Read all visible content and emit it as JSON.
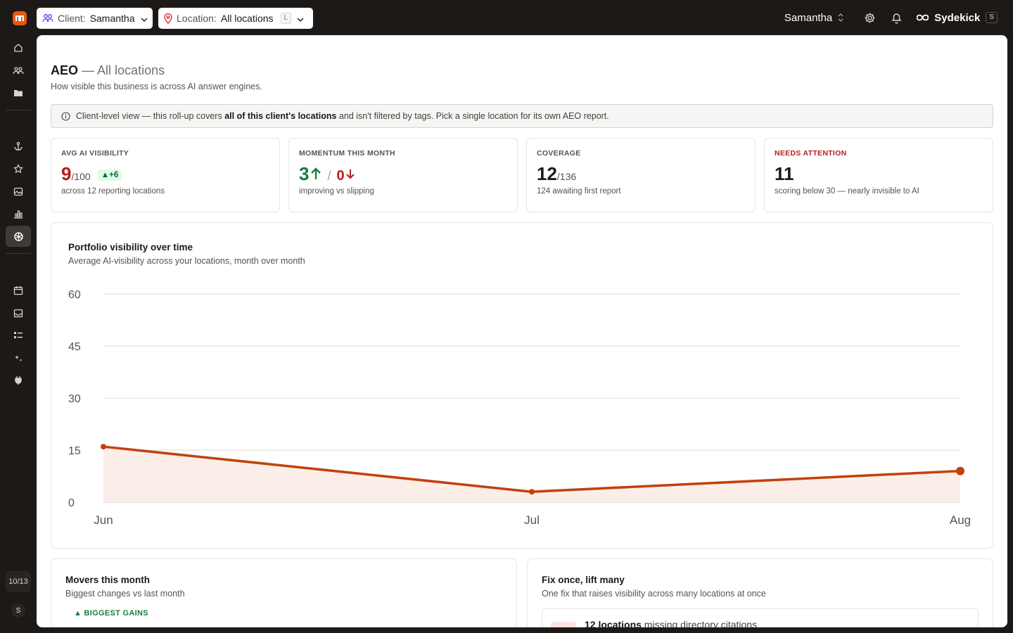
{
  "topbar": {
    "client_label": "Client:",
    "client_value": "Samantha",
    "location_label": "Location:",
    "location_value": "All locations",
    "location_shortcut": "L",
    "user_name": "Samantha",
    "brand_name": "Sydekick",
    "brand_shortcut": "S"
  },
  "sidebar": {
    "items": [
      "home-icon",
      "users-icon",
      "folder-icon",
      "anchor-icon",
      "star-icon",
      "images-icon",
      "bar-chart-icon",
      "aeo-icon",
      "calendar-icon",
      "inbox-icon",
      "tasks-icon",
      "sparkle-icon",
      "plug-icon"
    ],
    "active": "aeo-icon",
    "progress_label": "10/13",
    "avatar_initial": "S"
  },
  "page": {
    "title": "AEO",
    "title_suffix": "— All locations",
    "subtitle": "How visible this business is across AI answer engines.",
    "info_pre": "Client-level view — this roll-up covers ",
    "info_bold": "all of this client's locations",
    "info_post": " and isn't filtered by tags. Pick a single location for its own AEO report."
  },
  "stats": {
    "visibility": {
      "title": "AVG AI VISIBILITY",
      "value": "9",
      "denominator": "/100",
      "delta": "▲+6",
      "sub": "across 12 reporting locations"
    },
    "momentum": {
      "title": "MOMENTUM THIS MONTH",
      "up": "3",
      "separator": "/",
      "down": "0",
      "sub": "improving vs slipping"
    },
    "coverage": {
      "title": "COVERAGE",
      "value": "12",
      "denominator": "/136",
      "sub": "124 awaiting first report"
    },
    "attention": {
      "title": "NEEDS ATTENTION",
      "value": "11",
      "sub": "scoring below 30 — nearly invisible to AI"
    }
  },
  "chart": {
    "title": "Portfolio visibility over time",
    "subtitle": "Average AI-visibility across your locations, month over month"
  },
  "chart_data": {
    "type": "area",
    "categories": [
      "Jun",
      "Jul",
      "Aug"
    ],
    "values": [
      16,
      3,
      9
    ],
    "ylim": [
      0,
      60
    ],
    "yticks": [
      0,
      15,
      30,
      45,
      60
    ],
    "grid": true,
    "color": "#c2410c",
    "fill": "#fbeee8"
  },
  "movers": {
    "title": "Movers this month",
    "subtitle": "Biggest changes vs last month",
    "gains_label": "▲ BIGGEST GAINS"
  },
  "fix": {
    "title": "Fix once, lift many",
    "subtitle": "One fix that raises visibility across many locations at once",
    "item_bold": "12 locations",
    "item_text": " missing directory citations"
  }
}
